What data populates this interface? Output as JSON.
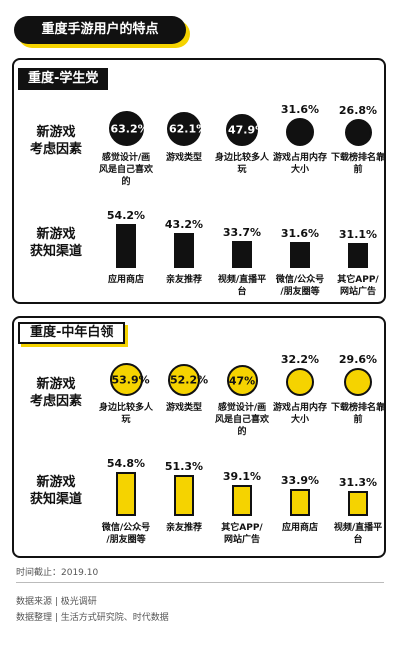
{
  "title": "重度手游用户的特点",
  "colors": {
    "black": "#111111",
    "yellow": "#f5d300"
  },
  "chart_data": [
    {
      "type": "bubble",
      "segment": "重度-学生党",
      "row_label": "新游戏考虑因素",
      "categories": [
        "感觉设计/画风是自己喜欢的",
        "游戏类型",
        "身边比较多人玩",
        "游戏占用内存大小",
        "下载榜排名靠前"
      ],
      "values": [
        63.2,
        62.1,
        47.9,
        31.6,
        26.8
      ],
      "labels": [
        "63.2%",
        "62.1%",
        "47.9%",
        "31.6%",
        "26.8%"
      ],
      "color": "#111111"
    },
    {
      "type": "bar",
      "segment": "重度-学生党",
      "row_label": "新游戏获知渠道",
      "categories": [
        "应用商店",
        "亲友推荐",
        "视频/直播平台",
        "微信/公众号/朋友圈等",
        "其它APP/网站广告"
      ],
      "values": [
        54.2,
        43.2,
        33.7,
        31.6,
        31.1
      ],
      "labels": [
        "54.2%",
        "43.2%",
        "33.7%",
        "31.6%",
        "31.1%"
      ],
      "color": "#111111"
    },
    {
      "type": "bubble",
      "segment": "重度-中年白领",
      "row_label": "新游戏考虑因素",
      "categories": [
        "身边比较多人玩",
        "游戏类型",
        "感觉设计/画风是自己喜欢的",
        "游戏占用内存大小",
        "下载榜排名靠前"
      ],
      "values": [
        53.9,
        52.2,
        47,
        32.2,
        29.6
      ],
      "labels": [
        "53.9%",
        "52.2%",
        "47%",
        "32.2%",
        "29.6%"
      ],
      "color": "#f5d300"
    },
    {
      "type": "bar",
      "segment": "重度-中年白领",
      "row_label": "新游戏获知渠道",
      "categories": [
        "微信/公众号/朋友圈等",
        "亲友推荐",
        "其它APP/网站广告",
        "应用商店",
        "视频/直播平台"
      ],
      "values": [
        54.8,
        51.3,
        39.1,
        33.9,
        31.3
      ],
      "labels": [
        "54.8%",
        "51.3%",
        "39.1%",
        "33.9%",
        "31.3%"
      ],
      "color": "#f5d300"
    }
  ],
  "footer": {
    "time": "时间截止：2019.10",
    "source": "数据来源 | 极光调研",
    "arranged": "数据整理 | 生活方式研究院、时代数据"
  }
}
